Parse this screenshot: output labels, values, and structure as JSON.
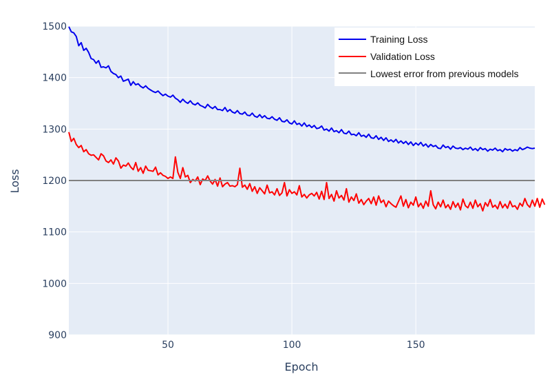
{
  "chart_data": {
    "type": "line",
    "xlabel": "Epoch",
    "ylabel": "Loss",
    "xlim": [
      10,
      198
    ],
    "ylim": [
      900,
      1500
    ],
    "x_ticks": [
      50,
      100,
      150
    ],
    "y_ticks": [
      900,
      1000,
      1100,
      1200,
      1300,
      1400,
      1500
    ],
    "grid": true,
    "legend_position": "top-right",
    "x_start": 10,
    "x_step": 1,
    "series": [
      {
        "name": "Training Loss",
        "color": "#0000ee",
        "values": [
          1499,
          1489,
          1487,
          1480,
          1462,
          1468,
          1453,
          1457,
          1449,
          1437,
          1435,
          1428,
          1433,
          1420,
          1421,
          1419,
          1423,
          1412,
          1408,
          1406,
          1400,
          1403,
          1393,
          1395,
          1397,
          1385,
          1392,
          1386,
          1388,
          1383,
          1380,
          1384,
          1379,
          1376,
          1373,
          1371,
          1374,
          1369,
          1365,
          1368,
          1364,
          1362,
          1366,
          1360,
          1357,
          1352,
          1358,
          1353,
          1350,
          1355,
          1349,
          1347,
          1351,
          1346,
          1344,
          1341,
          1348,
          1343,
          1340,
          1344,
          1338,
          1338,
          1336,
          1342,
          1334,
          1338,
          1333,
          1331,
          1336,
          1330,
          1329,
          1333,
          1327,
          1326,
          1331,
          1325,
          1323,
          1328,
          1322,
          1326,
          1321,
          1320,
          1324,
          1319,
          1317,
          1322,
          1315,
          1314,
          1318,
          1312,
          1310,
          1316,
          1309,
          1311,
          1306,
          1312,
          1305,
          1308,
          1303,
          1307,
          1301,
          1302,
          1306,
          1298,
          1300,
          1296,
          1302,
          1295,
          1297,
          1293,
          1299,
          1292,
          1291,
          1296,
          1289,
          1290,
          1287,
          1293,
          1286,
          1288,
          1284,
          1290,
          1283,
          1282,
          1287,
          1280,
          1284,
          1278,
          1283,
          1276,
          1279,
          1275,
          1280,
          1273,
          1277,
          1272,
          1276,
          1270,
          1275,
          1268,
          1273,
          1269,
          1274,
          1267,
          1271,
          1265,
          1270,
          1266,
          1268,
          1263,
          1262,
          1269,
          1264,
          1266,
          1261,
          1267,
          1263,
          1262,
          1264,
          1260,
          1263,
          1261,
          1265,
          1259,
          1262,
          1258,
          1264,
          1260,
          1262,
          1257,
          1261,
          1259,
          1263,
          1258,
          1260,
          1256,
          1262,
          1259,
          1261,
          1257,
          1260,
          1258,
          1264,
          1260,
          1262,
          1265,
          1263,
          1262,
          1263
        ]
      },
      {
        "name": "Validation Loss",
        "color": "#ff0000",
        "values": [
          1294,
          1276,
          1282,
          1270,
          1264,
          1268,
          1256,
          1260,
          1252,
          1249,
          1250,
          1245,
          1240,
          1252,
          1248,
          1238,
          1235,
          1240,
          1232,
          1244,
          1238,
          1224,
          1230,
          1228,
          1234,
          1226,
          1221,
          1235,
          1218,
          1225,
          1214,
          1228,
          1220,
          1219,
          1218,
          1226,
          1211,
          1215,
          1210,
          1208,
          1204,
          1207,
          1204,
          1246,
          1216,
          1204,
          1225,
          1207,
          1210,
          1196,
          1202,
          1199,
          1207,
          1192,
          1203,
          1200,
          1209,
          1199,
          1193,
          1202,
          1189,
          1205,
          1188,
          1193,
          1196,
          1189,
          1190,
          1188,
          1192,
          1224,
          1187,
          1191,
          1183,
          1194,
          1179,
          1188,
          1175,
          1186,
          1180,
          1174,
          1191,
          1176,
          1178,
          1172,
          1184,
          1171,
          1176,
          1196,
          1170,
          1182,
          1175,
          1178,
          1172,
          1190,
          1168,
          1173,
          1166,
          1172,
          1175,
          1170,
          1177,
          1164,
          1179,
          1163,
          1196,
          1165,
          1173,
          1160,
          1180,
          1166,
          1171,
          1162,
          1184,
          1158,
          1168,
          1161,
          1174,
          1156,
          1163,
          1153,
          1160,
          1165,
          1155,
          1168,
          1152,
          1170,
          1157,
          1162,
          1149,
          1160,
          1155,
          1151,
          1148,
          1159,
          1170,
          1150,
          1163,
          1147,
          1158,
          1152,
          1168,
          1149,
          1156,
          1146,
          1160,
          1150,
          1180,
          1153,
          1145,
          1158,
          1149,
          1162,
          1147,
          1153,
          1144,
          1159,
          1148,
          1156,
          1143,
          1164,
          1151,
          1147,
          1158,
          1146,
          1162,
          1149,
          1155,
          1141,
          1157,
          1150,
          1163,
          1148,
          1152,
          1145,
          1159,
          1147,
          1154,
          1146,
          1160,
          1149,
          1151,
          1144,
          1156,
          1150,
          1165,
          1153,
          1148,
          1162,
          1150,
          1165,
          1148,
          1164,
          1153
        ]
      },
      {
        "name": "Lowest error from previous models",
        "color": "#808080",
        "values": [
          1200,
          1200
        ]
      }
    ]
  }
}
